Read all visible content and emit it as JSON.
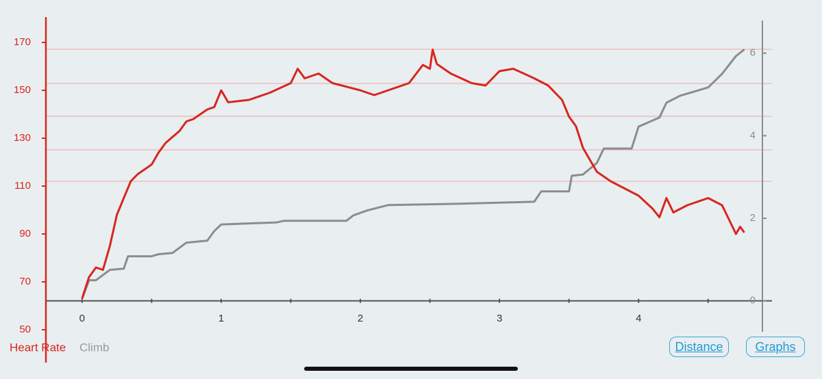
{
  "chart_data": {
    "type": "line",
    "xlim": [
      -0.26,
      4.89
    ],
    "xticks": [
      0,
      1,
      2,
      3,
      4
    ],
    "x_minor_ticks": [
      0.5,
      1.5,
      2.5,
      3.5,
      4.5
    ],
    "ylim": [
      50,
      180
    ],
    "yticks": [
      50,
      70,
      90,
      110,
      130,
      150,
      170
    ],
    "y2lim": [
      -0.7,
      6.84
    ],
    "y2ticks": [
      0,
      2,
      4,
      6
    ],
    "series": [
      {
        "name": "Heart Rate",
        "color": "#d7261e",
        "x": [
          0,
          0.05,
          0.1,
          0.15,
          0.2,
          0.25,
          0.3,
          0.35,
          0.4,
          0.5,
          0.55,
          0.6,
          0.7,
          0.75,
          0.8,
          0.9,
          0.95,
          1.0,
          1.05,
          1.2,
          1.35,
          1.5,
          1.55,
          1.6,
          1.7,
          1.8,
          2.0,
          2.1,
          2.2,
          2.35,
          2.45,
          2.5,
          2.52,
          2.55,
          2.65,
          2.8,
          2.9,
          3.0,
          3.1,
          3.25,
          3.35,
          3.45,
          3.5,
          3.55,
          3.6,
          3.65,
          3.7,
          3.8,
          3.9,
          4.0,
          4.1,
          4.15,
          4.2,
          4.25,
          4.35,
          4.5,
          4.6,
          4.65,
          4.7,
          4.73,
          4.76
        ],
        "values": [
          63,
          72,
          76,
          75,
          85,
          98,
          105,
          112,
          115,
          119,
          124,
          128,
          133,
          137,
          138,
          142,
          143,
          150,
          145,
          146,
          149,
          153,
          159,
          155,
          157,
          153,
          150,
          148,
          150,
          153,
          160.6,
          159,
          167,
          161,
          157,
          153,
          152,
          158,
          159,
          155,
          152,
          146,
          139,
          135,
          126,
          121,
          116,
          112,
          109,
          106,
          100.6,
          97,
          105,
          99,
          102,
          105,
          102,
          96,
          90,
          93,
          90.6
        ]
      },
      {
        "name": "Climb",
        "color": "#8c8c8c",
        "axis": "y2",
        "x": [
          0,
          0.05,
          0.1,
          0.2,
          0.3,
          0.33,
          0.5,
          0.55,
          0.65,
          0.75,
          0.9,
          0.95,
          1.0,
          1.4,
          1.45,
          1.9,
          1.95,
          2.05,
          2.2,
          2.7,
          2.9,
          3.25,
          3.3,
          3.5,
          3.52,
          3.6,
          3.7,
          3.75,
          3.95,
          4.0,
          4.15,
          4.2,
          4.3,
          4.5,
          4.6,
          4.7,
          4.76
        ],
        "values": [
          0.05,
          0.5,
          0.5,
          0.75,
          0.78,
          1.08,
          1.08,
          1.13,
          1.16,
          1.41,
          1.46,
          1.69,
          1.85,
          1.9,
          1.94,
          1.94,
          2.07,
          2.19,
          2.32,
          2.35,
          2.37,
          2.4,
          2.65,
          2.65,
          3.03,
          3.06,
          3.34,
          3.69,
          3.69,
          4.22,
          4.44,
          4.8,
          4.97,
          5.17,
          5.5,
          5.93,
          6.09
        ]
      }
    ]
  },
  "buttons": {
    "distance": "Distance",
    "graphs": "Graphs"
  }
}
